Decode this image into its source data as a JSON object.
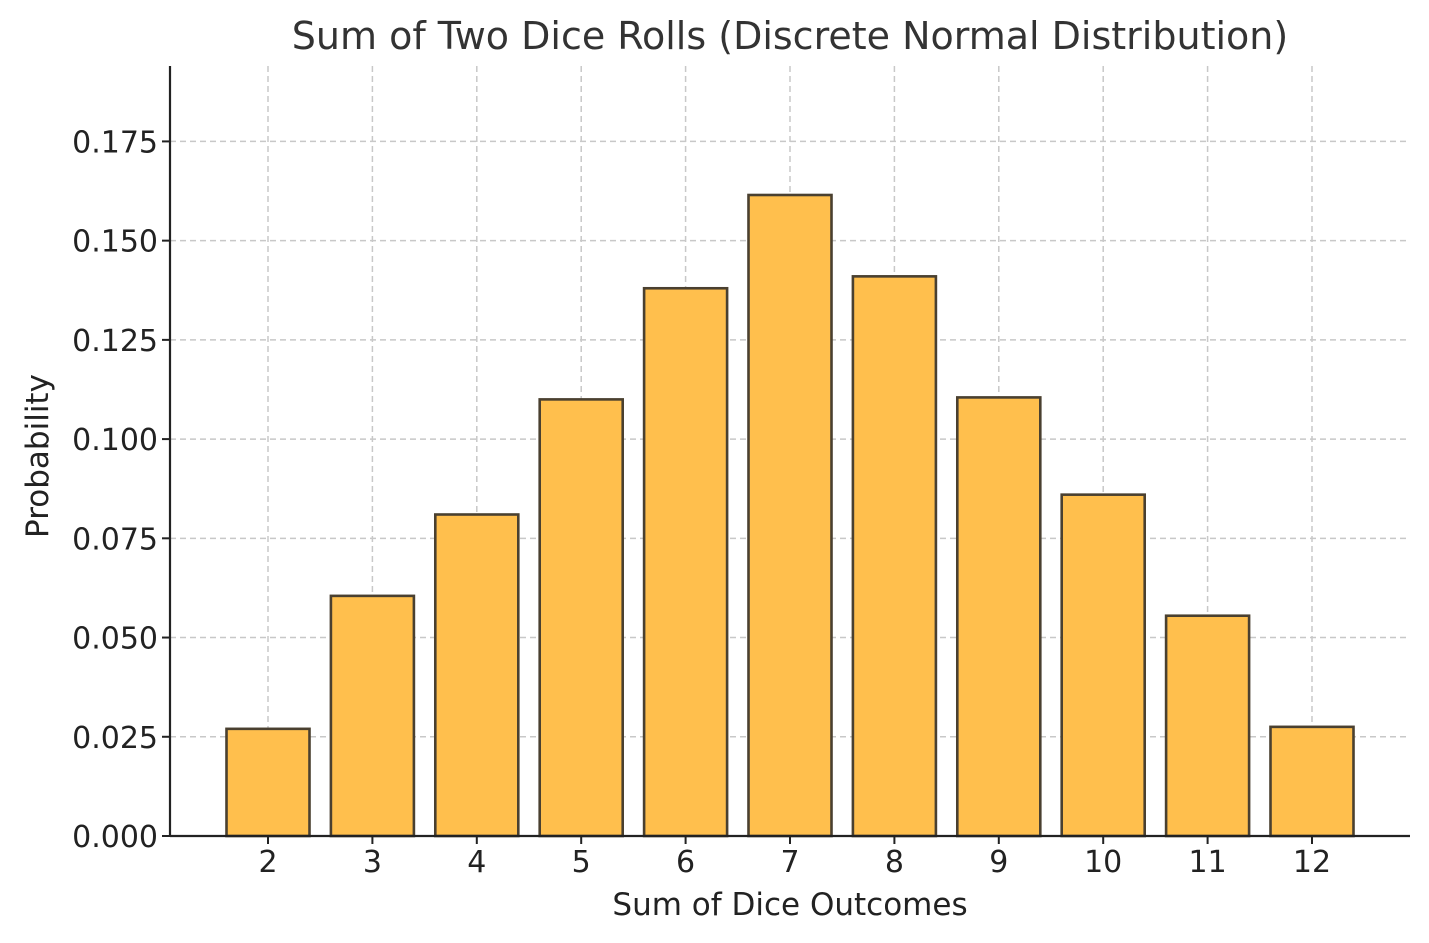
{
  "chart_data": {
    "type": "bar",
    "title": "Sum of Two Dice Rolls (Discrete Normal Distribution)",
    "xlabel": "Sum of Dice Outcomes",
    "ylabel": "Probability",
    "categories": [
      "2",
      "3",
      "4",
      "5",
      "6",
      "7",
      "8",
      "9",
      "10",
      "11",
      "12"
    ],
    "values": [
      0.027,
      0.0605,
      0.081,
      0.11,
      0.138,
      0.1615,
      0.141,
      0.1105,
      0.086,
      0.0555,
      0.0275
    ],
    "yticks": [
      "0.000",
      "0.025",
      "0.050",
      "0.075",
      "0.100",
      "0.125",
      "0.150",
      "0.175"
    ],
    "ylim": [
      0,
      0.194
    ],
    "grid": true,
    "colors": {
      "bar_fill": "#ffbf4d",
      "bar_edge": "#4a4030"
    }
  }
}
